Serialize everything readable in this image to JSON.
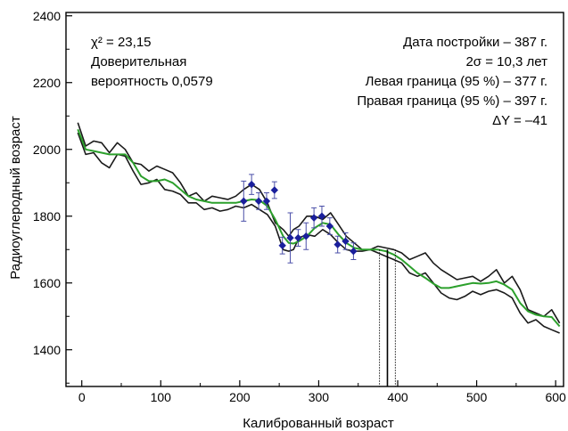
{
  "chart_data": {
    "type": "line",
    "xlabel": "Калиброванный возраст",
    "ylabel": "Радиоуглеродный возраст",
    "xlim": [
      -20,
      610
    ],
    "ylim": [
      1290,
      2410
    ],
    "x_ticks": [
      0,
      100,
      200,
      300,
      400,
      500,
      600
    ],
    "y_ticks": [
      1400,
      1600,
      1800,
      2000,
      2200,
      2400
    ],
    "annotations_left": [
      "χ² = 23,15",
      "Доверительная",
      "вероятность 0,0579"
    ],
    "annotations_right": [
      "Дата постройки – 387 г.",
      "2σ = 10,3 лет",
      "Левая граница (95 %) – 377 г.",
      "Правая граница (95 %) – 397 г.",
      "ΔY = –41"
    ],
    "colors": {
      "band": "#1a1a1a",
      "fit": "#2ca02c",
      "points": "#1a1f9c"
    },
    "series": [
      {
        "role": "upper-band",
        "points": [
          [
            -5,
            2080
          ],
          [
            5,
            2010
          ],
          [
            15,
            2025
          ],
          [
            25,
            2020
          ],
          [
            35,
            1990
          ],
          [
            45,
            2020
          ],
          [
            55,
            2000
          ],
          [
            65,
            1960
          ],
          [
            75,
            1955
          ],
          [
            85,
            1935
          ],
          [
            95,
            1950
          ],
          [
            105,
            1940
          ],
          [
            115,
            1930
          ],
          [
            125,
            1900
          ],
          [
            135,
            1860
          ],
          [
            145,
            1870
          ],
          [
            155,
            1845
          ],
          [
            165,
            1860
          ],
          [
            175,
            1855
          ],
          [
            185,
            1850
          ],
          [
            195,
            1860
          ],
          [
            205,
            1880
          ],
          [
            215,
            1895
          ],
          [
            225,
            1880
          ],
          [
            235,
            1840
          ],
          [
            245,
            1780
          ],
          [
            255,
            1760
          ],
          [
            262,
            1740
          ],
          [
            268,
            1760
          ],
          [
            275,
            1770
          ],
          [
            285,
            1800
          ],
          [
            295,
            1800
          ],
          [
            305,
            1790
          ],
          [
            315,
            1810
          ],
          [
            325,
            1775
          ],
          [
            335,
            1740
          ],
          [
            345,
            1720
          ],
          [
            355,
            1700
          ],
          [
            365,
            1700
          ],
          [
            375,
            1710
          ],
          [
            385,
            1705
          ],
          [
            395,
            1700
          ],
          [
            405,
            1690
          ],
          [
            415,
            1670
          ],
          [
            425,
            1680
          ],
          [
            435,
            1690
          ],
          [
            445,
            1660
          ],
          [
            455,
            1640
          ],
          [
            465,
            1625
          ],
          [
            475,
            1610
          ],
          [
            485,
            1615
          ],
          [
            495,
            1620
          ],
          [
            505,
            1605
          ],
          [
            515,
            1620
          ],
          [
            525,
            1640
          ],
          [
            535,
            1600
          ],
          [
            545,
            1620
          ],
          [
            555,
            1580
          ],
          [
            565,
            1520
          ],
          [
            575,
            1510
          ],
          [
            585,
            1500
          ],
          [
            595,
            1520
          ],
          [
            605,
            1480
          ]
        ]
      },
      {
        "role": "lower-band",
        "points": [
          [
            -5,
            2050
          ],
          [
            5,
            1985
          ],
          [
            15,
            1990
          ],
          [
            25,
            1960
          ],
          [
            35,
            1945
          ],
          [
            45,
            1985
          ],
          [
            55,
            1980
          ],
          [
            65,
            1935
          ],
          [
            75,
            1895
          ],
          [
            85,
            1900
          ],
          [
            95,
            1910
          ],
          [
            105,
            1880
          ],
          [
            115,
            1875
          ],
          [
            125,
            1865
          ],
          [
            135,
            1840
          ],
          [
            145,
            1840
          ],
          [
            155,
            1820
          ],
          [
            165,
            1825
          ],
          [
            175,
            1815
          ],
          [
            185,
            1820
          ],
          [
            195,
            1830
          ],
          [
            205,
            1825
          ],
          [
            215,
            1835
          ],
          [
            225,
            1820
          ],
          [
            235,
            1805
          ],
          [
            245,
            1770
          ],
          [
            255,
            1700
          ],
          [
            262,
            1695
          ],
          [
            268,
            1700
          ],
          [
            275,
            1735
          ],
          [
            285,
            1745
          ],
          [
            295,
            1740
          ],
          [
            305,
            1760
          ],
          [
            315,
            1745
          ],
          [
            325,
            1720
          ],
          [
            335,
            1700
          ],
          [
            345,
            1695
          ],
          [
            355,
            1695
          ],
          [
            365,
            1700
          ],
          [
            375,
            1690
          ],
          [
            385,
            1680
          ],
          [
            395,
            1670
          ],
          [
            405,
            1660
          ],
          [
            415,
            1630
          ],
          [
            425,
            1620
          ],
          [
            435,
            1630
          ],
          [
            445,
            1600
          ],
          [
            455,
            1570
          ],
          [
            465,
            1555
          ],
          [
            475,
            1550
          ],
          [
            485,
            1560
          ],
          [
            495,
            1575
          ],
          [
            505,
            1565
          ],
          [
            515,
            1575
          ],
          [
            525,
            1580
          ],
          [
            535,
            1570
          ],
          [
            545,
            1555
          ],
          [
            555,
            1510
          ],
          [
            565,
            1480
          ],
          [
            575,
            1490
          ],
          [
            585,
            1470
          ],
          [
            595,
            1460
          ],
          [
            605,
            1450
          ]
        ]
      },
      {
        "role": "fit-curve",
        "points": [
          [
            -5,
            2060
          ],
          [
            5,
            2000
          ],
          [
            15,
            1995
          ],
          [
            25,
            1990
          ],
          [
            35,
            1985
          ],
          [
            45,
            1985
          ],
          [
            55,
            1985
          ],
          [
            65,
            1960
          ],
          [
            75,
            1920
          ],
          [
            85,
            1905
          ],
          [
            95,
            1905
          ],
          [
            105,
            1910
          ],
          [
            115,
            1900
          ],
          [
            125,
            1880
          ],
          [
            135,
            1860
          ],
          [
            145,
            1850
          ],
          [
            155,
            1845
          ],
          [
            165,
            1840
          ],
          [
            175,
            1840
          ],
          [
            185,
            1840
          ],
          [
            195,
            1840
          ],
          [
            205,
            1845
          ],
          [
            215,
            1850
          ],
          [
            225,
            1848
          ],
          [
            235,
            1830
          ],
          [
            245,
            1790
          ],
          [
            255,
            1740
          ],
          [
            262,
            1720
          ],
          [
            268,
            1718
          ],
          [
            275,
            1725
          ],
          [
            285,
            1740
          ],
          [
            295,
            1765
          ],
          [
            305,
            1780
          ],
          [
            315,
            1775
          ],
          [
            325,
            1745
          ],
          [
            335,
            1720
          ],
          [
            345,
            1705
          ],
          [
            355,
            1700
          ],
          [
            365,
            1700
          ],
          [
            375,
            1700
          ],
          [
            385,
            1695
          ],
          [
            395,
            1685
          ],
          [
            405,
            1670
          ],
          [
            415,
            1650
          ],
          [
            425,
            1630
          ],
          [
            435,
            1615
          ],
          [
            445,
            1598
          ],
          [
            455,
            1585
          ],
          [
            465,
            1585
          ],
          [
            475,
            1590
          ],
          [
            485,
            1595
          ],
          [
            495,
            1600
          ],
          [
            505,
            1598
          ],
          [
            515,
            1600
          ],
          [
            525,
            1605
          ],
          [
            535,
            1595
          ],
          [
            545,
            1580
          ],
          [
            555,
            1540
          ],
          [
            565,
            1515
          ],
          [
            575,
            1505
          ],
          [
            585,
            1500
          ],
          [
            595,
            1498
          ],
          [
            605,
            1470
          ]
        ]
      },
      {
        "role": "samples",
        "points": [
          {
            "x": 205,
            "y": 1845,
            "err": 60
          },
          {
            "x": 215,
            "y": 1895,
            "err": 30
          },
          {
            "x": 224,
            "y": 1845,
            "err": 25
          },
          {
            "x": 234,
            "y": 1845,
            "err": 25
          },
          {
            "x": 244,
            "y": 1878,
            "err": 25
          },
          {
            "x": 254,
            "y": 1712,
            "err": 25
          },
          {
            "x": 264,
            "y": 1735,
            "err": 75
          },
          {
            "x": 274,
            "y": 1735,
            "err": 25
          },
          {
            "x": 284,
            "y": 1740,
            "err": 40
          },
          {
            "x": 294,
            "y": 1795,
            "err": 30
          },
          {
            "x": 304,
            "y": 1800,
            "err": 30
          },
          {
            "x": 314,
            "y": 1770,
            "err": 25
          },
          {
            "x": 324,
            "y": 1715,
            "err": 25
          },
          {
            "x": 334,
            "y": 1725,
            "err": 25
          },
          {
            "x": 344,
            "y": 1695,
            "err": 25
          }
        ]
      }
    ],
    "markers": [
      {
        "role": "date",
        "x": 387
      },
      {
        "role": "left-bound-95",
        "x": 377
      },
      {
        "role": "right-bound-95",
        "x": 397
      }
    ]
  }
}
